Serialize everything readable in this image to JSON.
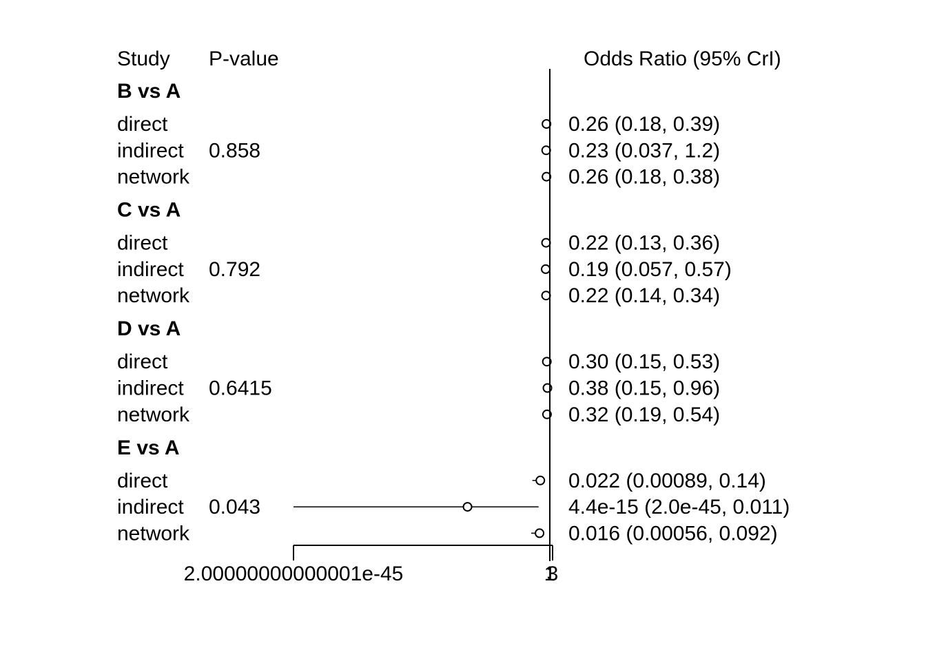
{
  "chart_data": {
    "type": "forest",
    "headers": {
      "study": "Study",
      "pvalue": "P-value",
      "estimate": "Odds Ratio (95% CrI)"
    },
    "x_scale": "log",
    "xlim": [
      2.00000000000001e-45,
      3
    ],
    "reference_line": 1,
    "x_ticks": [
      {
        "value": 2.00000000000001e-45,
        "label": "2.00000000000001e-45"
      },
      {
        "value": 1,
        "label": "1"
      },
      {
        "value": 3,
        "label": "3"
      }
    ],
    "groups": [
      {
        "name": "B vs A",
        "rows": [
          {
            "label": "direct",
            "pvalue": "",
            "estimate": 0.26,
            "lower": 0.18,
            "upper": 0.39,
            "text": "0.26 (0.18, 0.39)"
          },
          {
            "label": "indirect",
            "pvalue": "0.858",
            "estimate": 0.23,
            "lower": 0.037,
            "upper": 1.2,
            "text": "0.23 (0.037, 1.2)"
          },
          {
            "label": "network",
            "pvalue": "",
            "estimate": 0.26,
            "lower": 0.18,
            "upper": 0.38,
            "text": "0.26 (0.18, 0.38)"
          }
        ]
      },
      {
        "name": "C vs A",
        "rows": [
          {
            "label": "direct",
            "pvalue": "",
            "estimate": 0.22,
            "lower": 0.13,
            "upper": 0.36,
            "text": "0.22 (0.13, 0.36)"
          },
          {
            "label": "indirect",
            "pvalue": "0.792",
            "estimate": 0.19,
            "lower": 0.057,
            "upper": 0.57,
            "text": "0.19 (0.057, 0.57)"
          },
          {
            "label": "network",
            "pvalue": "",
            "estimate": 0.22,
            "lower": 0.14,
            "upper": 0.34,
            "text": "0.22 (0.14, 0.34)"
          }
        ]
      },
      {
        "name": "D vs A",
        "rows": [
          {
            "label": "direct",
            "pvalue": "",
            "estimate": 0.3,
            "lower": 0.15,
            "upper": 0.53,
            "text": "0.30 (0.15, 0.53)"
          },
          {
            "label": "indirect",
            "pvalue": "0.6415",
            "estimate": 0.38,
            "lower": 0.15,
            "upper": 0.96,
            "text": "0.38 (0.15, 0.96)"
          },
          {
            "label": "network",
            "pvalue": "",
            "estimate": 0.32,
            "lower": 0.19,
            "upper": 0.54,
            "text": "0.32 (0.19, 0.54)"
          }
        ]
      },
      {
        "name": "E vs A",
        "rows": [
          {
            "label": "direct",
            "pvalue": "",
            "estimate": 0.022,
            "lower": 0.00089,
            "upper": 0.14,
            "text": "0.022 (0.00089, 0.14)"
          },
          {
            "label": "indirect",
            "pvalue": "0.043",
            "estimate": 4.4e-15,
            "lower": 2e-45,
            "upper": 0.011,
            "text": "4.4e-15 (2.0e-45, 0.011)"
          },
          {
            "label": "network",
            "pvalue": "",
            "estimate": 0.016,
            "lower": 0.00056,
            "upper": 0.092,
            "text": "0.016 (0.00056, 0.092)"
          }
        ]
      }
    ]
  }
}
